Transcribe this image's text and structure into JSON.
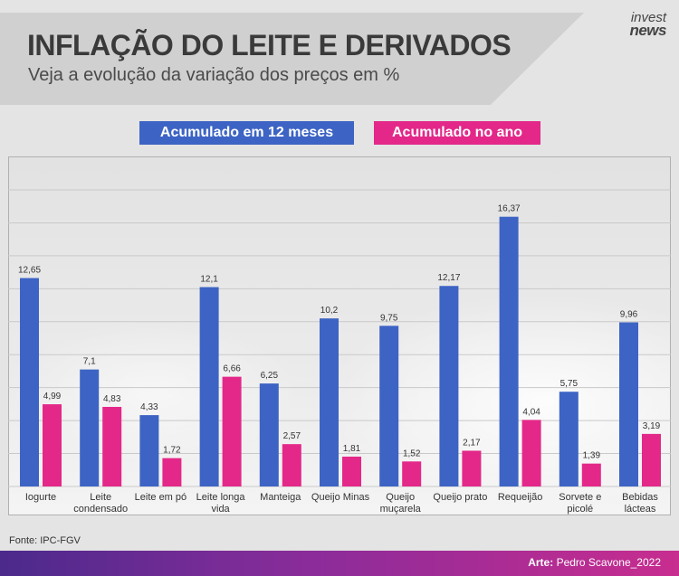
{
  "header": {
    "title": "INFLAÇÃO DO LEITE E DERIVADOS",
    "subtitle": "Veja a evolução da variação dos preços em %"
  },
  "logo": {
    "line1": "invest",
    "line2": "news"
  },
  "footer": {
    "source": "Fonte:  IPC-FGV",
    "credit_label": "Arte:",
    "credit_name": "Pedro Scavone_2022"
  },
  "colors": {
    "series_12m": "#3d64c4",
    "series_year": "#e32889"
  },
  "chart_data": {
    "type": "bar",
    "title": "INFLAÇÃO DO LEITE E DERIVADOS",
    "subtitle": "Veja a evolução da variação dos preços em %",
    "categories": [
      [
        "Iogurte"
      ],
      [
        "Leite",
        "condensado"
      ],
      [
        "Leite em pó"
      ],
      [
        "Leite longa",
        "vida"
      ],
      [
        "Manteiga"
      ],
      [
        "Queijo Minas"
      ],
      [
        "Queijo",
        "muçarela"
      ],
      [
        "Queijo prato"
      ],
      [
        "Requeijão"
      ],
      [
        "Sorvete e",
        "picolé"
      ],
      [
        "Bebidas",
        "lácteas"
      ]
    ],
    "series": [
      {
        "name": "Acumulado em 12 meses",
        "values": [
          12.65,
          7.1,
          4.33,
          12.1,
          6.25,
          10.2,
          9.75,
          12.17,
          16.37,
          5.75,
          9.96
        ],
        "labels": [
          "12,65",
          "7,1",
          "4,33",
          "12,1",
          "6,25",
          "10,2",
          "9,75",
          "12,17",
          "16,37",
          "5,75",
          "9,96"
        ]
      },
      {
        "name": "Acumulado no ano",
        "values": [
          4.99,
          4.83,
          1.72,
          6.66,
          2.57,
          1.81,
          1.52,
          2.17,
          4.04,
          1.39,
          3.19
        ],
        "labels": [
          "4,99",
          "4,83",
          "1,72",
          "6,66",
          "2,57",
          "1,81",
          "1,52",
          "2,17",
          "4,04",
          "1,39",
          "3,19"
        ]
      }
    ],
    "ylim": [
      0,
      18
    ],
    "grid": true,
    "legend_position": "top"
  }
}
